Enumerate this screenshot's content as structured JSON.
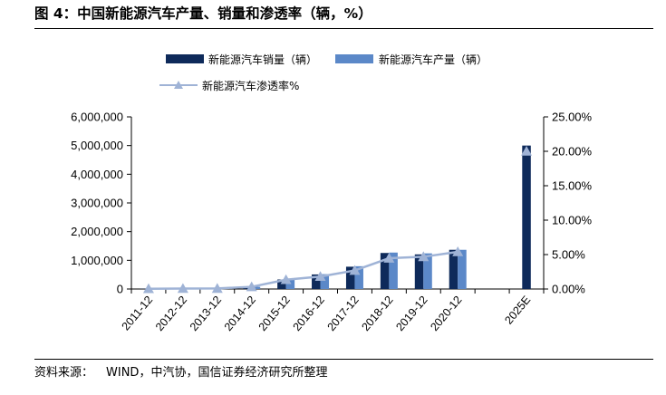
{
  "title": "图 4：中国新能源汽车产量、销量和渗透率（辆，%）",
  "source": {
    "label": "资料来源：",
    "text": "WIND，中汽协，国信证券经济研究所整理"
  },
  "colors": {
    "sales": "#0e2a5a",
    "production": "#5b88c8",
    "penetration": "#9fb3d6",
    "axis": "#000000"
  },
  "chart_data": {
    "type": "bar",
    "categories": [
      "2011-12",
      "2012-12",
      "2013-12",
      "2014-12",
      "2015-12",
      "2016-12",
      "2017-12",
      "2018-12",
      "2019-12",
      "2020-12",
      "",
      "2025E"
    ],
    "series": [
      {
        "name": "新能源汽车销量（辆）",
        "type": "bar",
        "axis": "left",
        "values": [
          8159,
          12791,
          17642,
          74763,
          331092,
          507000,
          777000,
          1256000,
          1206000,
          1367000,
          null,
          5000000
        ]
      },
      {
        "name": "新能源汽车产量（辆）",
        "type": "bar",
        "axis": "left",
        "values": [
          8368,
          12552,
          17533,
          78499,
          340471,
          517000,
          794000,
          1270000,
          1242000,
          1366000,
          null,
          null
        ]
      },
      {
        "name": "新能源汽车渗透率%",
        "type": "line",
        "axis": "right",
        "values": [
          0.04,
          0.07,
          0.08,
          0.32,
          1.35,
          1.81,
          2.69,
          4.47,
          4.68,
          5.4,
          null,
          20.0
        ]
      }
    ],
    "y_left": {
      "ylim": [
        0,
        6000000
      ],
      "ticks": [
        0,
        1000000,
        2000000,
        3000000,
        4000000,
        5000000,
        6000000
      ],
      "tick_labels": [
        "0",
        "1,000,000",
        "2,000,000",
        "3,000,000",
        "4,000,000",
        "5,000,000",
        "6,000,000"
      ]
    },
    "y_right": {
      "ylim": [
        0,
        25
      ],
      "ticks": [
        0,
        5,
        10,
        15,
        20,
        25
      ],
      "tick_labels": [
        "0.00%",
        "5.00%",
        "10.00%",
        "15.00%",
        "20.00%",
        "25.00%"
      ]
    },
    "grid": false,
    "legend": "top"
  }
}
